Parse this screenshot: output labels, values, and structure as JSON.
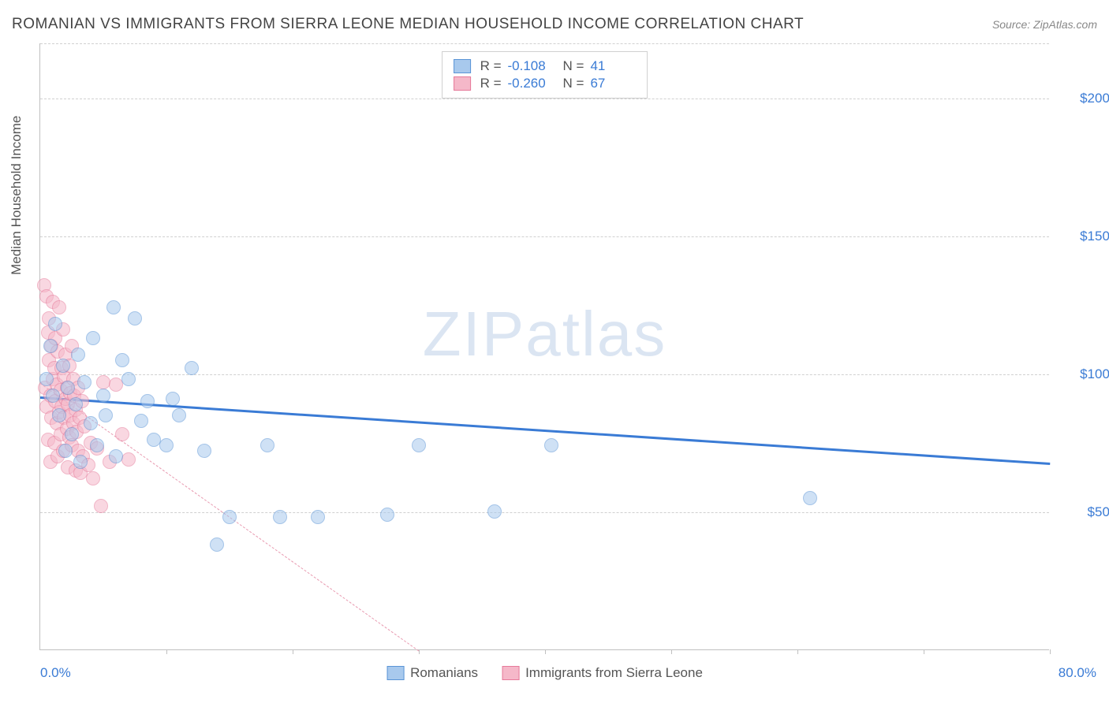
{
  "header": {
    "title": "ROMANIAN VS IMMIGRANTS FROM SIERRA LEONE MEDIAN HOUSEHOLD INCOME CORRELATION CHART",
    "source": "Source: ZipAtlas.com"
  },
  "chart": {
    "type": "scatter",
    "xlim": [
      0,
      80
    ],
    "ylim": [
      0,
      220000
    ],
    "x_min_label": "0.0%",
    "x_max_label": "80.0%",
    "y_axis_title": "Median Household Income",
    "y_ticks": [
      {
        "v": 50000,
        "label": "$50,000"
      },
      {
        "v": 100000,
        "label": "$100,000"
      },
      {
        "v": 150000,
        "label": "$150,000"
      },
      {
        "v": 200000,
        "label": "$200,000"
      }
    ],
    "x_tick_positions": [
      10,
      20,
      30,
      40,
      50,
      60,
      70,
      80
    ],
    "grid_color": "#d0d0d0",
    "background_color": "#ffffff",
    "watermark": "ZIPatlas",
    "series": [
      {
        "id": "romanians",
        "label": "Romanians",
        "fill": "#a8c9ed",
        "stroke": "#5a94d6",
        "fill_opacity": 0.55,
        "marker_radius": 9,
        "R": "-0.108",
        "N": "41",
        "trend": {
          "x1": 0,
          "y1": 92000,
          "x2": 80,
          "y2": 68000,
          "color": "#3a7bd5",
          "width": 3,
          "dash": "solid"
        },
        "points": [
          [
            0.5,
            98000
          ],
          [
            0.8,
            110000
          ],
          [
            1.0,
            92000
          ],
          [
            1.2,
            118000
          ],
          [
            1.5,
            85000
          ],
          [
            1.8,
            103000
          ],
          [
            2.0,
            72000
          ],
          [
            2.2,
            95000
          ],
          [
            2.5,
            78000
          ],
          [
            2.8,
            89000
          ],
          [
            3.0,
            107000
          ],
          [
            3.2,
            68000
          ],
          [
            3.5,
            97000
          ],
          [
            4.0,
            82000
          ],
          [
            4.2,
            113000
          ],
          [
            4.5,
            74000
          ],
          [
            5.0,
            92000
          ],
          [
            5.2,
            85000
          ],
          [
            5.8,
            124000
          ],
          [
            6.0,
            70000
          ],
          [
            6.5,
            105000
          ],
          [
            7.0,
            98000
          ],
          [
            7.5,
            120000
          ],
          [
            8.0,
            83000
          ],
          [
            8.5,
            90000
          ],
          [
            9.0,
            76000
          ],
          [
            10.0,
            74000
          ],
          [
            10.5,
            91000
          ],
          [
            11.0,
            85000
          ],
          [
            12.0,
            102000
          ],
          [
            13.0,
            72000
          ],
          [
            14.0,
            38000
          ],
          [
            15.0,
            48000
          ],
          [
            18.0,
            74000
          ],
          [
            19.0,
            48000
          ],
          [
            22.0,
            48000
          ],
          [
            27.5,
            49000
          ],
          [
            30.0,
            74000
          ],
          [
            36.0,
            50000
          ],
          [
            40.5,
            74000
          ],
          [
            61.0,
            55000
          ]
        ]
      },
      {
        "id": "sierra_leone",
        "label": "Immigrants from Sierra Leone",
        "fill": "#f5b8c9",
        "stroke": "#e67a9a",
        "fill_opacity": 0.55,
        "marker_radius": 9,
        "R": "-0.260",
        "N": "67",
        "trend": {
          "x1": 0,
          "y1": 97000,
          "x2": 30,
          "y2": 0,
          "color": "#e89ab0",
          "width": 1.5,
          "dash": "dashed"
        },
        "points": [
          [
            0.3,
            132000
          ],
          [
            0.4,
            95000
          ],
          [
            0.5,
            128000
          ],
          [
            0.5,
            88000
          ],
          [
            0.6,
            115000
          ],
          [
            0.6,
            76000
          ],
          [
            0.7,
            105000
          ],
          [
            0.7,
            120000
          ],
          [
            0.8,
            92000
          ],
          [
            0.8,
            68000
          ],
          [
            0.9,
            110000
          ],
          [
            0.9,
            84000
          ],
          [
            1.0,
            98000
          ],
          [
            1.0,
            126000
          ],
          [
            1.1,
            75000
          ],
          [
            1.1,
            102000
          ],
          [
            1.2,
            90000
          ],
          [
            1.2,
            113000
          ],
          [
            1.3,
            82000
          ],
          [
            1.3,
            96000
          ],
          [
            1.4,
            108000
          ],
          [
            1.4,
            70000
          ],
          [
            1.5,
            86000
          ],
          [
            1.5,
            124000
          ],
          [
            1.6,
            94000
          ],
          [
            1.6,
            78000
          ],
          [
            1.7,
            102000
          ],
          [
            1.7,
            88000
          ],
          [
            1.8,
            116000
          ],
          [
            1.8,
            72000
          ],
          [
            1.9,
            99000
          ],
          [
            1.9,
            84000
          ],
          [
            2.0,
            91000
          ],
          [
            2.0,
            107000
          ],
          [
            2.1,
            80000
          ],
          [
            2.1,
            95000
          ],
          [
            2.2,
            66000
          ],
          [
            2.2,
            89000
          ],
          [
            2.3,
            103000
          ],
          [
            2.3,
            77000
          ],
          [
            2.4,
            93000
          ],
          [
            2.4,
            85000
          ],
          [
            2.5,
            110000
          ],
          [
            2.5,
            74000
          ],
          [
            2.6,
            98000
          ],
          [
            2.6,
            82000
          ],
          [
            2.7,
            92000
          ],
          [
            2.8,
            65000
          ],
          [
            2.8,
            87000
          ],
          [
            2.9,
            79000
          ],
          [
            3.0,
            95000
          ],
          [
            3.0,
            72000
          ],
          [
            3.1,
            84000
          ],
          [
            3.2,
            64000
          ],
          [
            3.3,
            90000
          ],
          [
            3.4,
            70000
          ],
          [
            3.5,
            81000
          ],
          [
            3.8,
            67000
          ],
          [
            4.0,
            75000
          ],
          [
            4.2,
            62000
          ],
          [
            4.5,
            73000
          ],
          [
            4.8,
            52000
          ],
          [
            5.0,
            97000
          ],
          [
            5.5,
            68000
          ],
          [
            6.0,
            96000
          ],
          [
            6.5,
            78000
          ],
          [
            7.0,
            69000
          ]
        ]
      }
    ]
  }
}
